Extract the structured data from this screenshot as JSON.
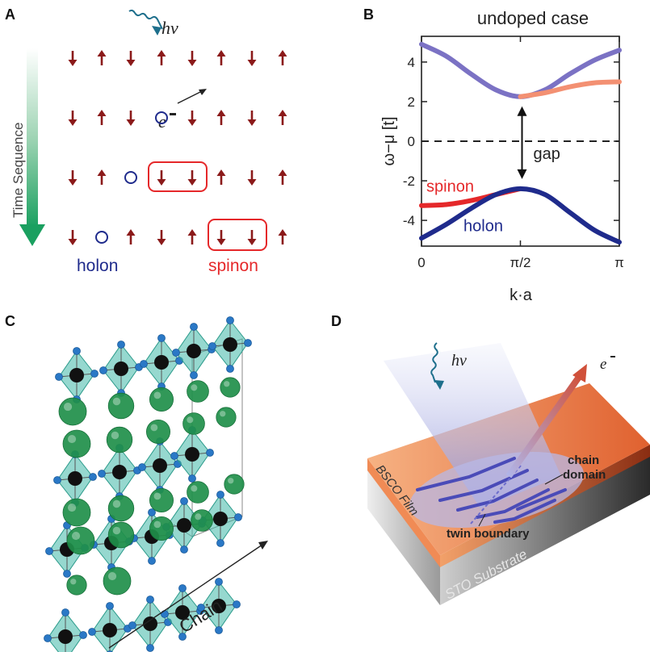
{
  "panels": {
    "a": {
      "letter": "A",
      "time_label": "Time Sequence",
      "photon": "hν",
      "electron": "e",
      "holon_label": "holon",
      "spinon_label": "spinon",
      "rows": [
        [
          "down",
          "up",
          "down",
          "up",
          "down",
          "up",
          "down",
          "up"
        ],
        [
          "down",
          "up",
          "down",
          "hole",
          "down",
          "up",
          "down",
          "up"
        ],
        [
          "down",
          "up",
          "hole",
          "down",
          "down",
          "up",
          "down",
          "up"
        ],
        [
          "down",
          "hole",
          "up",
          "down",
          "up",
          "down",
          "down",
          "up"
        ]
      ],
      "colors": {
        "arrow": "#8b1a1a",
        "hole": "#1f2b8c",
        "spinon": "#e5282a",
        "holon": "#1f2b8c",
        "time_arrow": "#1aa060"
      }
    },
    "b": {
      "letter": "B",
      "gap_label": "gap",
      "spinon_label": "spinon",
      "holon_label": "holon"
    },
    "c": {
      "letter": "C",
      "chain_label": "Chain",
      "colors": {
        "octahedron": "#3fb8a8",
        "sphere": "#1f8f4a",
        "oxygen": "#2a78c6",
        "copper": "#111111"
      }
    },
    "d": {
      "letter": "D",
      "photon": "hν",
      "electron": "e",
      "film_label": "BSCO Film",
      "substrate_label": "STO Substrate",
      "chain_domain_label_1": "chain",
      "chain_domain_label_2": "domain",
      "twin_boundary_label": "twin boundary"
    }
  },
  "chart_data": {
    "type": "line",
    "title": "undoped case",
    "xlabel": "k·a",
    "ylabel": "ω−μ [t]",
    "xlim": [
      0,
      3.1416
    ],
    "ylim": [
      -5.3,
      5.3
    ],
    "xticks": [
      {
        "value": 0,
        "label": "0"
      },
      {
        "value": 1.5708,
        "label": "π/2"
      },
      {
        "value": 3.1416,
        "label": "π"
      }
    ],
    "yticks": [
      {
        "value": -4,
        "label": "-4"
      },
      {
        "value": -2,
        "label": "-2"
      },
      {
        "value": 0,
        "label": "0"
      },
      {
        "value": 2,
        "label": "2"
      },
      {
        "value": 4,
        "label": "4"
      }
    ],
    "dashed_line_y": 0,
    "series": [
      {
        "name": "",
        "color": "#7b72c4",
        "x": [
          0,
          0.3927,
          0.7854,
          1.1781,
          1.5708,
          1.9635,
          2.3562,
          2.7489,
          3.1416
        ],
        "y": [
          4.9,
          4.3,
          3.4,
          2.6,
          2.25,
          2.6,
          3.4,
          4.1,
          4.6
        ]
      },
      {
        "name": "",
        "color": "#f39072",
        "x": [
          1.5708,
          1.9635,
          2.3562,
          2.7489,
          3.1416
        ],
        "y": [
          2.25,
          2.45,
          2.75,
          2.95,
          3.0
        ]
      },
      {
        "name": "spinon",
        "color": "#e5282a",
        "x": [
          0,
          0.3927,
          0.7854,
          1.1781,
          1.5708
        ],
        "y": [
          -3.25,
          -3.2,
          -3.0,
          -2.7,
          -2.4
        ]
      },
      {
        "name": "holon",
        "color": "#1f2b8c",
        "x": [
          0,
          0.3927,
          0.7854,
          1.1781,
          1.5708,
          1.9635,
          2.3562,
          2.7489,
          3.1416
        ],
        "y": [
          -4.9,
          -4.2,
          -3.4,
          -2.7,
          -2.4,
          -2.7,
          -3.6,
          -4.5,
          -5.1
        ]
      }
    ]
  }
}
